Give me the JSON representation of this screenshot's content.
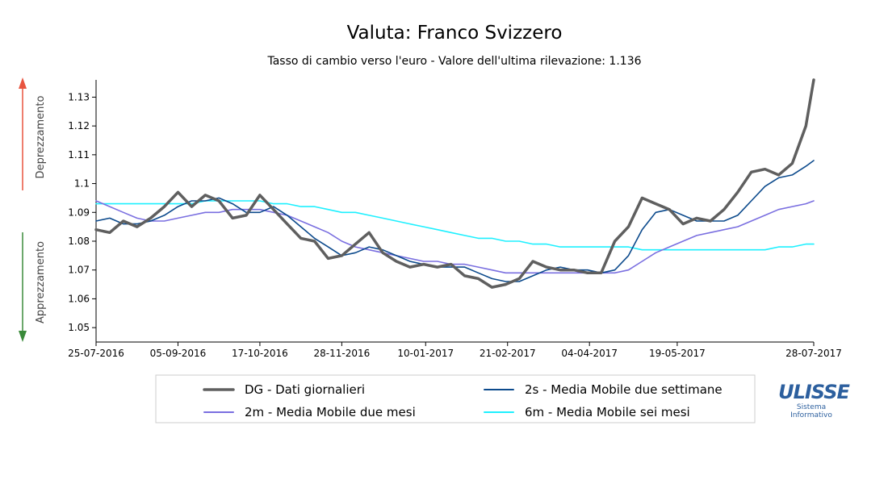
{
  "header": {
    "title": "Valuta: Franco Svizzero",
    "subtitle": "Tasso di cambio verso l'euro - Valore dell'ultima rilevazione: 1.136"
  },
  "side_labels": {
    "up": "Deprezzamento",
    "down": "Apprezzamento",
    "up_color": "#e8543f",
    "down_color": "#3a8a3a"
  },
  "logo": {
    "word": "ULISSE",
    "line1": "Sistema",
    "line2": "Informativo",
    "color": "#2c5f9e"
  },
  "chart_data": {
    "type": "line",
    "title": "Valuta: Franco Svizzero",
    "subtitle": "Tasso di cambio verso l'euro - Valore dell'ultima rilevazione: 1.136",
    "x_dates": [
      "25-07-2016",
      "01-08-2016",
      "08-08-2016",
      "15-08-2016",
      "22-08-2016",
      "29-08-2016",
      "05-09-2016",
      "12-09-2016",
      "19-09-2016",
      "26-09-2016",
      "03-10-2016",
      "10-10-2016",
      "17-10-2016",
      "24-10-2016",
      "31-10-2016",
      "07-11-2016",
      "14-11-2016",
      "21-11-2016",
      "28-11-2016",
      "05-12-2016",
      "12-12-2016",
      "19-12-2016",
      "26-12-2016",
      "02-01-2017",
      "09-01-2017",
      "16-01-2017",
      "23-01-2017",
      "30-01-2017",
      "06-02-2017",
      "13-02-2017",
      "20-02-2017",
      "27-02-2017",
      "06-03-2017",
      "13-03-2017",
      "20-03-2017",
      "27-03-2017",
      "03-04-2017",
      "10-04-2017",
      "17-04-2017",
      "24-04-2017",
      "01-05-2017",
      "08-05-2017",
      "15-05-2017",
      "22-05-2017",
      "29-05-2017",
      "05-06-2017",
      "12-06-2017",
      "19-06-2017",
      "26-06-2017",
      "03-07-2017",
      "10-07-2017",
      "17-07-2017",
      "24-07-2017",
      "28-07-2017"
    ],
    "x_ticks": [
      "25-07-2016",
      "05-09-2016",
      "17-10-2016",
      "28-11-2016",
      "10-01-2017",
      "21-02-2017",
      "04-04-2017",
      "19-05-2017",
      "28-07-2017"
    ],
    "ylim": [
      1.045,
      1.136
    ],
    "y_ticks": [
      1.05,
      1.06,
      1.07,
      1.08,
      1.09,
      1.1,
      1.11,
      1.12,
      1.13
    ],
    "series": [
      {
        "name": "DG - Dati giornalieri",
        "color": "#5f5f5f",
        "width": 3.5,
        "values": [
          1.084,
          1.083,
          1.087,
          1.085,
          1.088,
          1.092,
          1.097,
          1.092,
          1.096,
          1.094,
          1.088,
          1.089,
          1.096,
          1.091,
          1.086,
          1.081,
          1.08,
          1.074,
          1.075,
          1.079,
          1.083,
          1.076,
          1.073,
          1.071,
          1.072,
          1.071,
          1.072,
          1.068,
          1.067,
          1.064,
          1.065,
          1.067,
          1.073,
          1.071,
          1.07,
          1.07,
          1.069,
          1.069,
          1.08,
          1.085,
          1.095,
          1.093,
          1.091,
          1.086,
          1.088,
          1.087,
          1.091,
          1.097,
          1.104,
          1.105,
          1.103,
          1.107,
          1.12,
          1.136
        ]
      },
      {
        "name": "2s - Media Mobile due settimane",
        "color": "#0c4a8c",
        "width": 1.6,
        "values": [
          1.087,
          1.088,
          1.086,
          1.086,
          1.087,
          1.089,
          1.092,
          1.094,
          1.094,
          1.095,
          1.093,
          1.09,
          1.09,
          1.092,
          1.089,
          1.085,
          1.081,
          1.078,
          1.075,
          1.076,
          1.078,
          1.077,
          1.075,
          1.073,
          1.072,
          1.071,
          1.071,
          1.071,
          1.069,
          1.067,
          1.066,
          1.066,
          1.068,
          1.07,
          1.071,
          1.07,
          1.07,
          1.069,
          1.07,
          1.075,
          1.084,
          1.09,
          1.091,
          1.089,
          1.087,
          1.087,
          1.087,
          1.089,
          1.094,
          1.099,
          1.102,
          1.103,
          1.106,
          1.108
        ]
      },
      {
        "name": "2m - Media Mobile due mesi",
        "color": "#7a6fe0",
        "width": 1.6,
        "values": [
          1.094,
          1.092,
          1.09,
          1.088,
          1.087,
          1.087,
          1.088,
          1.089,
          1.09,
          1.09,
          1.091,
          1.091,
          1.091,
          1.09,
          1.089,
          1.087,
          1.085,
          1.083,
          1.08,
          1.078,
          1.077,
          1.076,
          1.075,
          1.074,
          1.073,
          1.073,
          1.072,
          1.072,
          1.071,
          1.07,
          1.069,
          1.069,
          1.069,
          1.069,
          1.069,
          1.069,
          1.069,
          1.069,
          1.069,
          1.07,
          1.073,
          1.076,
          1.078,
          1.08,
          1.082,
          1.083,
          1.084,
          1.085,
          1.087,
          1.089,
          1.091,
          1.092,
          1.093,
          1.094
        ]
      },
      {
        "name": "6m - Media Mobile sei mesi",
        "color": "#1ef0ff",
        "width": 1.6,
        "values": [
          1.093,
          1.093,
          1.093,
          1.093,
          1.093,
          1.093,
          1.093,
          1.093,
          1.094,
          1.094,
          1.094,
          1.094,
          1.094,
          1.093,
          1.093,
          1.092,
          1.092,
          1.091,
          1.09,
          1.09,
          1.089,
          1.088,
          1.087,
          1.086,
          1.085,
          1.084,
          1.083,
          1.082,
          1.081,
          1.081,
          1.08,
          1.08,
          1.079,
          1.079,
          1.078,
          1.078,
          1.078,
          1.078,
          1.078,
          1.078,
          1.077,
          1.077,
          1.077,
          1.077,
          1.077,
          1.077,
          1.077,
          1.077,
          1.077,
          1.077,
          1.078,
          1.078,
          1.079,
          1.079
        ]
      }
    ],
    "legend": {
      "placement": "bottom",
      "order": [
        "DG - Dati giornalieri",
        "2s - Media Mobile due settimane",
        "2m - Media Mobile due mesi",
        "6m - Media Mobile sei mesi"
      ]
    },
    "grid": false
  }
}
